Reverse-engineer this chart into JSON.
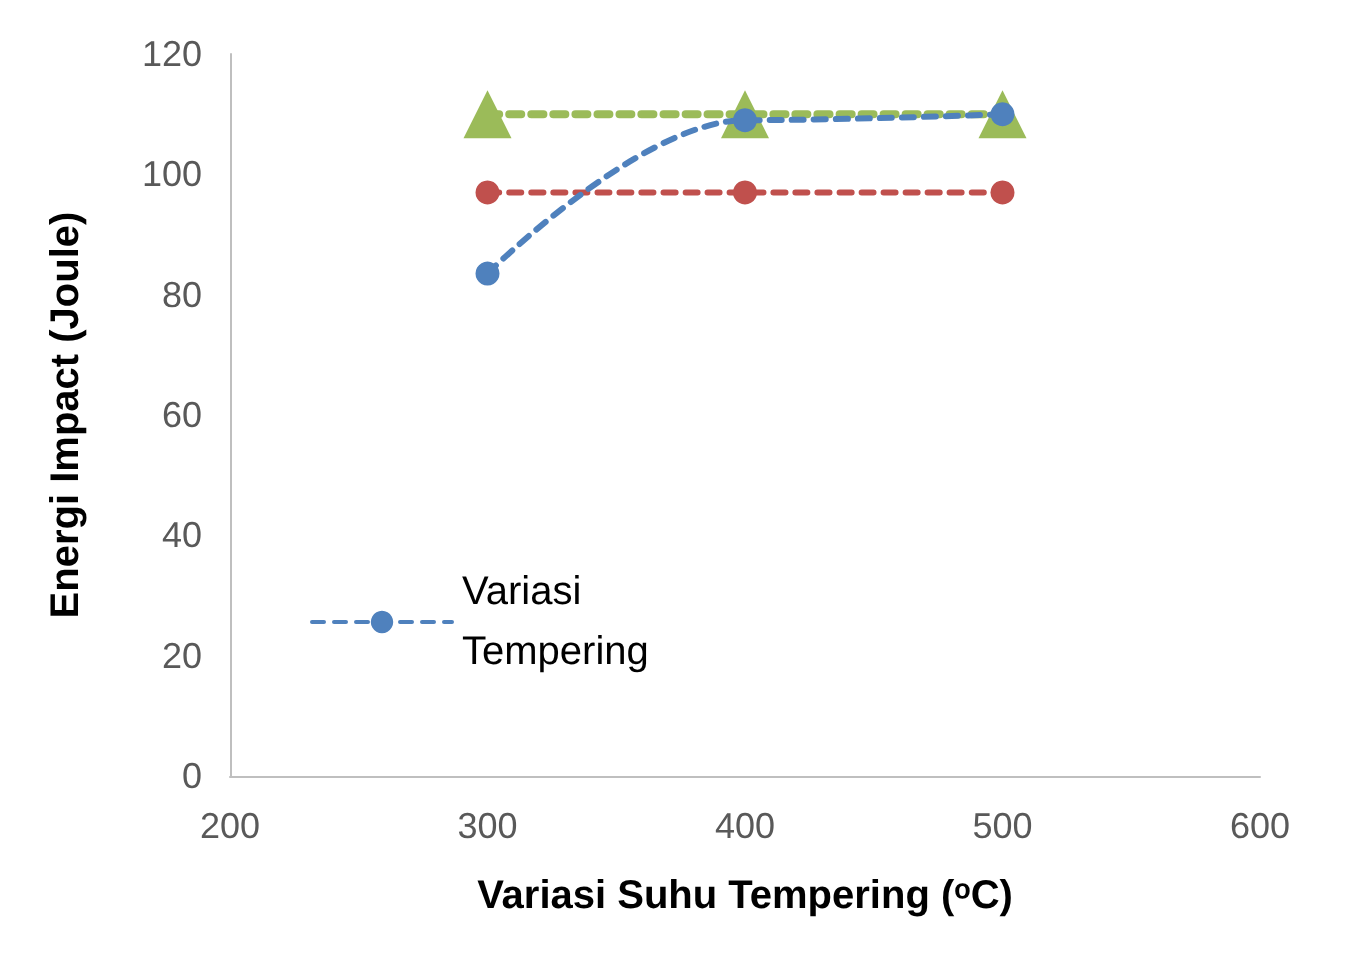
{
  "chart_data": {
    "type": "line",
    "xlabel": "Variasi Suhu Tempering (ᵒC)",
    "ylabel": "Energi Impact (Joule)",
    "x": [
      300,
      400,
      500
    ],
    "series": [
      {
        "name": "Variasi Tempering",
        "color": "#4f81bd",
        "values": [
          83.5,
          109,
          110
        ],
        "marker": "circle",
        "line_style": "dashed"
      },
      {
        "color": "#c0504d",
        "values": [
          97,
          97,
          97
        ],
        "marker": "circle",
        "line_style": "dashed"
      },
      {
        "color": "#9bbb59",
        "values": [
          110,
          110,
          110
        ],
        "marker": "triangle",
        "line_style": "dashed"
      }
    ],
    "xlim": [
      200,
      600
    ],
    "xticks": [
      200,
      300,
      400,
      500,
      600
    ],
    "ylim": [
      0,
      120
    ],
    "yticks": [
      0,
      20,
      40,
      60,
      80,
      100,
      120
    ],
    "grid": false,
    "legend": "bottom left"
  }
}
